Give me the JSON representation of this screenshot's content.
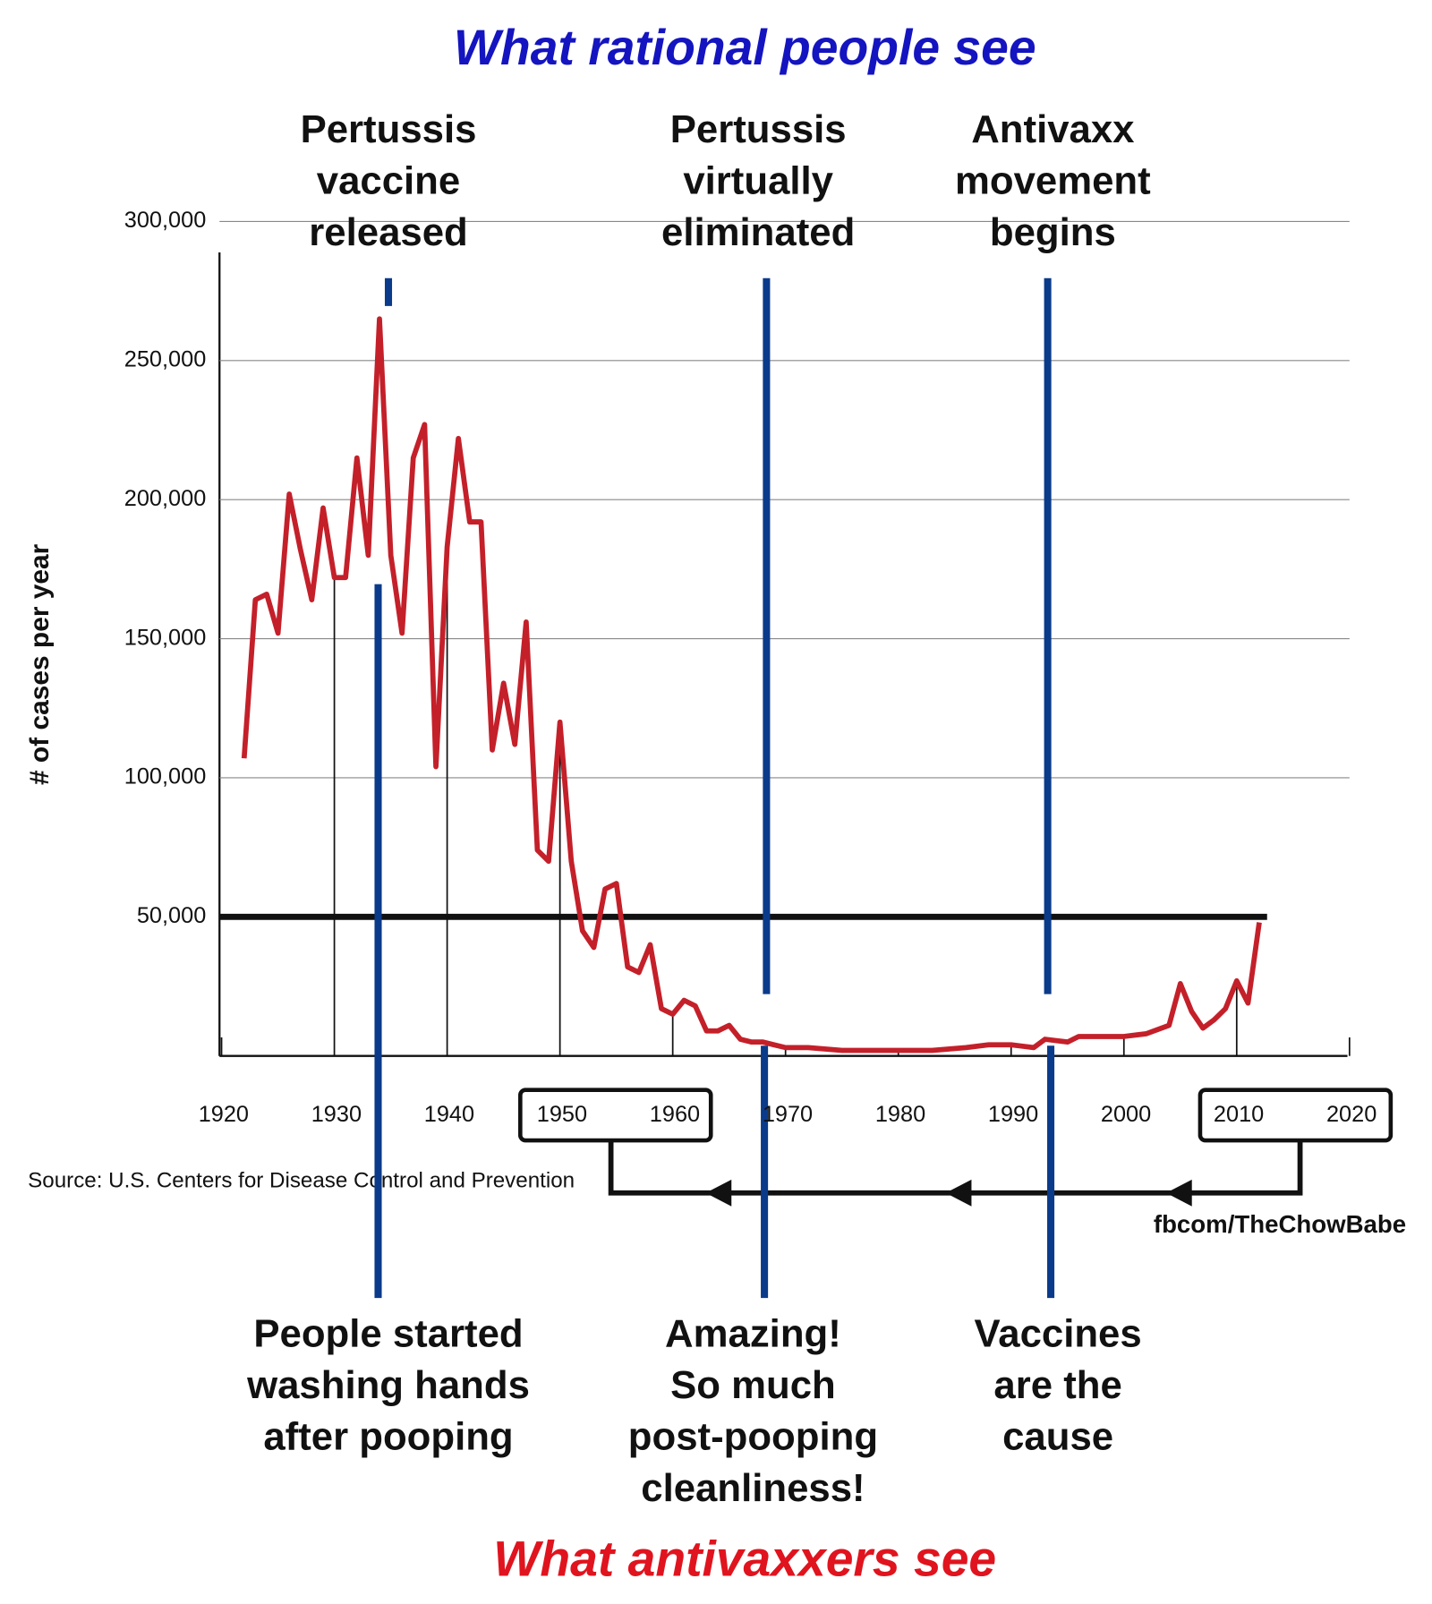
{
  "chart_data": {
    "type": "line",
    "title": "What rational people see",
    "bottom_title": "What antivaxxers see",
    "y_label": "# of cases per year",
    "source": "Source: U.S. Centers for Disease Control and Prevention",
    "credit": "fbcom/TheChowBabe",
    "annotations_top": [
      [
        "Pertussis",
        "vaccine",
        "released"
      ],
      [
        "Pertussis",
        "virtually",
        "eliminated"
      ],
      [
        "Antivaxx",
        "movement",
        "begins"
      ]
    ],
    "annotations_bottom": [
      [
        "People started",
        "washing hands",
        "after pooping"
      ],
      [
        "Amazing!",
        "So much",
        "post-pooping",
        "cleanliness!"
      ],
      [
        "Vaccines",
        "are the",
        "cause"
      ]
    ],
    "x": [
      1922,
      1923,
      1924,
      1925,
      1926,
      1927,
      1928,
      1929,
      1930,
      1931,
      1932,
      1933,
      1934,
      1935,
      1936,
      1937,
      1938,
      1939,
      1940,
      1941,
      1942,
      1943,
      1944,
      1945,
      1946,
      1947,
      1948,
      1949,
      1950,
      1951,
      1952,
      1953,
      1954,
      1955,
      1956,
      1957,
      1958,
      1959,
      1960,
      1961,
      1962,
      1963,
      1964,
      1965,
      1966,
      1967,
      1968,
      1969,
      1970,
      1972,
      1975,
      1978,
      1980,
      1983,
      1986,
      1988,
      1990,
      1992,
      1993,
      1995,
      1996,
      1998,
      2000,
      2002,
      2004,
      2005,
      2006,
      2007,
      2008,
      2009,
      2010,
      2011,
      2012
    ],
    "values": [
      107000,
      164000,
      166000,
      152000,
      202000,
      182000,
      164000,
      197000,
      172000,
      172000,
      215000,
      180000,
      265000,
      180000,
      152000,
      215000,
      227000,
      104000,
      183000,
      222000,
      192000,
      192000,
      110000,
      134000,
      112000,
      156000,
      74000,
      70000,
      120000,
      70000,
      45000,
      39000,
      60000,
      62000,
      32000,
      30000,
      40000,
      17000,
      15000,
      20000,
      18000,
      9000,
      9000,
      11000,
      6000,
      5000,
      5000,
      4000,
      3000,
      3000,
      2000,
      2000,
      2000,
      2000,
      3000,
      4000,
      4000,
      3000,
      6000,
      5000,
      7000,
      7000,
      7000,
      8000,
      11000,
      26000,
      16000,
      10000,
      13000,
      17000,
      27000,
      19000,
      48000
    ],
    "color": "#c4202a",
    "xlim": [
      1920,
      2020
    ],
    "xticks": [
      1920,
      1930,
      1940,
      1950,
      1960,
      1970,
      1980,
      1990,
      2000,
      2010,
      2020
    ],
    "ylim": [
      0,
      300000
    ],
    "yticks": [
      {
        "value": 50000,
        "label": "50,000"
      },
      {
        "value": 100000,
        "label": "100,000"
      },
      {
        "value": 150000,
        "label": "150,000"
      },
      {
        "value": 200000,
        "label": "200,000"
      },
      {
        "value": 250000,
        "label": "250,000"
      },
      {
        "value": 300000,
        "label": "300,000"
      }
    ],
    "threshold": 50000,
    "grid": true
  }
}
